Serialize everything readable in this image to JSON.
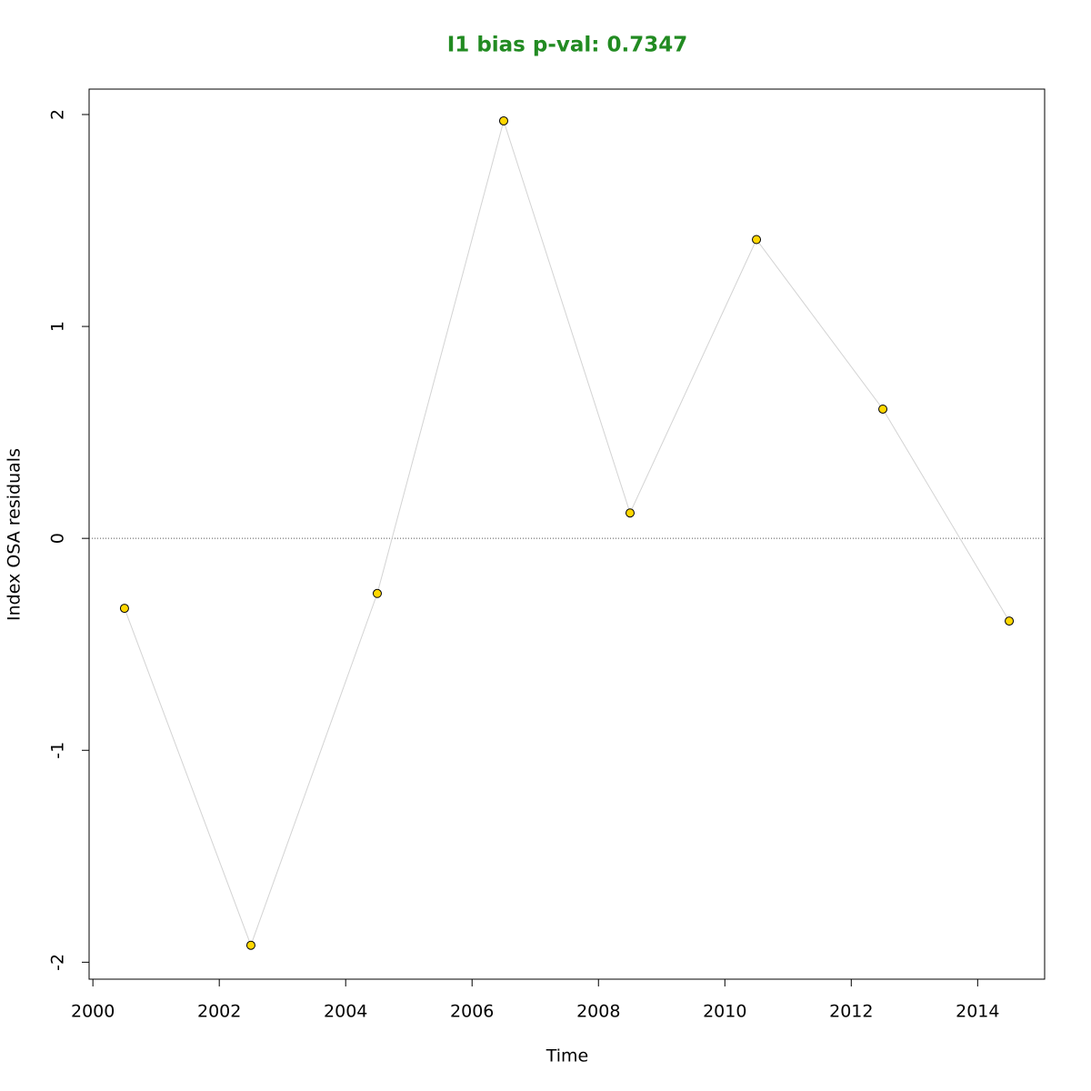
{
  "chart_data": {
    "type": "line",
    "title": "I1 bias p-val: 0.7347",
    "title_color": "#228b22",
    "x_label": "Time",
    "y_label": "Index OSA residuals",
    "x": [
      2000.5,
      2002.5,
      2004.5,
      2006.5,
      2008.5,
      2010.5,
      2012.5,
      2014.5
    ],
    "series": [
      {
        "name": "I1",
        "color": "#d3d3d3",
        "marker_color": "#ffd700",
        "values": [
          -0.33,
          -1.92,
          -0.26,
          1.97,
          0.12,
          1.41,
          0.61,
          -0.39
        ]
      }
    ],
    "xlim": [
      1999.94,
      2015.06
    ],
    "xticks": [
      2000,
      2002,
      2004,
      2006,
      2008,
      2010,
      2012,
      2014
    ],
    "ylim": [
      -2.08,
      2.12
    ],
    "yticks": [
      -2,
      -1,
      0,
      1,
      2
    ],
    "reference_line": 0
  }
}
